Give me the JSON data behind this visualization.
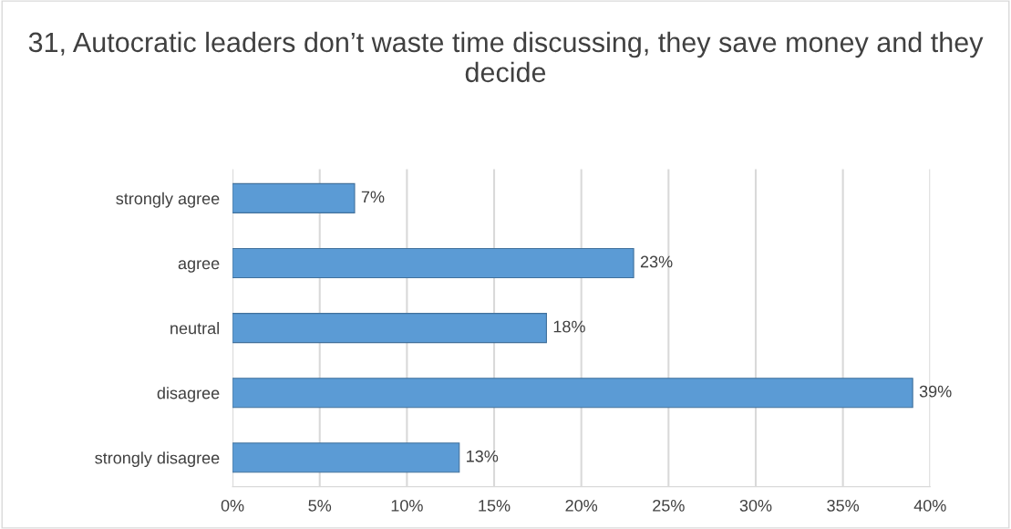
{
  "chart_data": {
    "type": "bar",
    "orientation": "horizontal",
    "title": "31, Autocratic leaders don’t waste time discussing, they save money and they decide",
    "categories": [
      "strongly agree",
      "agree",
      "neutral",
      "disagree",
      "strongly disagree"
    ],
    "values": [
      7,
      23,
      18,
      39,
      13
    ],
    "color": "#5b9bd5",
    "value_labels": [
      "7%",
      "23%",
      "18%",
      "39%",
      "13%"
    ],
    "xlim": [
      0,
      40
    ],
    "xticks": [
      {
        "value": 0,
        "label": "0%"
      },
      {
        "value": 5,
        "label": "5%"
      },
      {
        "value": 10,
        "label": "10%"
      },
      {
        "value": 15,
        "label": "15%"
      },
      {
        "value": 20,
        "label": "20%"
      },
      {
        "value": 25,
        "label": "25%"
      },
      {
        "value": 30,
        "label": "30%"
      },
      {
        "value": 35,
        "label": "35%"
      },
      {
        "value": 40,
        "label": "40%"
      }
    ],
    "grid": "x",
    "legend": false
  }
}
